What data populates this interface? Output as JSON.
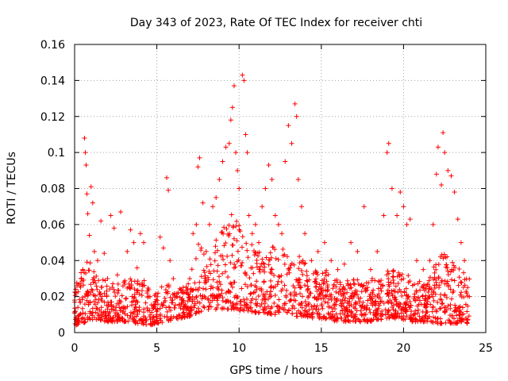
{
  "chart_data": {
    "type": "scatter",
    "title": "Day 343 of 2023, Rate Of TEC Index for receiver chti",
    "xlabel": "GPS time / hours",
    "ylabel": "ROTI / TECUs",
    "xlim": [
      0,
      25
    ],
    "ylim": [
      0,
      0.16
    ],
    "x_ticks": [
      0,
      5,
      10,
      15,
      20,
      25
    ],
    "x_tick_labels": [
      "0",
      "5",
      "10",
      "15",
      "20",
      "25"
    ],
    "y_ticks": [
      0,
      0.02,
      0.04,
      0.06,
      0.08,
      0.1,
      0.12,
      0.14,
      0.16
    ],
    "y_tick_labels": [
      "0",
      "0.02",
      "0.04",
      "0.06",
      "0.08",
      "0.1",
      "0.12",
      "0.14",
      "0.16"
    ],
    "grid": true,
    "marker": "+",
    "marker_color": "#ff0000",
    "data_x_range": [
      0,
      24
    ],
    "points": [
      [
        0.0,
        0.018
      ],
      [
        0.1,
        0.022
      ],
      [
        0.2,
        0.014
      ],
      [
        0.3,
        0.01
      ],
      [
        0.4,
        0.03
      ],
      [
        0.5,
        0.035
      ],
      [
        0.6,
        0.108
      ],
      [
        0.65,
        0.1
      ],
      [
        0.7,
        0.093
      ],
      [
        0.75,
        0.077
      ],
      [
        0.8,
        0.066
      ],
      [
        0.9,
        0.054
      ],
      [
        1.0,
        0.081
      ],
      [
        1.1,
        0.072
      ],
      [
        1.2,
        0.045
      ],
      [
        1.4,
        0.04
      ],
      [
        1.6,
        0.062
      ],
      [
        1.8,
        0.044
      ],
      [
        2.0,
        0.03
      ],
      [
        2.2,
        0.065
      ],
      [
        2.4,
        0.058
      ],
      [
        2.6,
        0.032
      ],
      [
        2.8,
        0.067
      ],
      [
        3.0,
        0.028
      ],
      [
        3.2,
        0.045
      ],
      [
        3.4,
        0.057
      ],
      [
        3.6,
        0.05
      ],
      [
        3.8,
        0.036
      ],
      [
        4.0,
        0.055
      ],
      [
        4.2,
        0.05
      ],
      [
        4.5,
        0.02
      ],
      [
        4.8,
        0.015
      ],
      [
        5.0,
        0.01
      ],
      [
        5.2,
        0.053
      ],
      [
        5.4,
        0.047
      ],
      [
        5.6,
        0.086
      ],
      [
        5.7,
        0.079
      ],
      [
        5.8,
        0.04
      ],
      [
        6.0,
        0.03
      ],
      [
        6.2,
        0.02
      ],
      [
        6.5,
        0.016
      ],
      [
        6.8,
        0.022
      ],
      [
        7.0,
        0.03
      ],
      [
        7.2,
        0.055
      ],
      [
        7.4,
        0.06
      ],
      [
        7.5,
        0.092
      ],
      [
        7.6,
        0.097
      ],
      [
        7.8,
        0.072
      ],
      [
        8.0,
        0.045
      ],
      [
        8.2,
        0.06
      ],
      [
        8.4,
        0.07
      ],
      [
        8.6,
        0.075
      ],
      [
        8.8,
        0.085
      ],
      [
        9.0,
        0.095
      ],
      [
        9.2,
        0.103
      ],
      [
        9.4,
        0.105
      ],
      [
        9.5,
        0.118
      ],
      [
        9.6,
        0.125
      ],
      [
        9.7,
        0.137
      ],
      [
        9.8,
        0.1
      ],
      [
        9.9,
        0.09
      ],
      [
        10.0,
        0.08
      ],
      [
        10.2,
        0.143
      ],
      [
        10.3,
        0.14
      ],
      [
        10.4,
        0.11
      ],
      [
        10.5,
        0.1
      ],
      [
        10.6,
        0.065
      ],
      [
        10.8,
        0.055
      ],
      [
        11.0,
        0.06
      ],
      [
        11.2,
        0.05
      ],
      [
        11.4,
        0.07
      ],
      [
        11.6,
        0.08
      ],
      [
        11.8,
        0.093
      ],
      [
        12.0,
        0.085
      ],
      [
        12.2,
        0.065
      ],
      [
        12.4,
        0.06
      ],
      [
        12.6,
        0.055
      ],
      [
        12.8,
        0.095
      ],
      [
        13.0,
        0.115
      ],
      [
        13.2,
        0.105
      ],
      [
        13.4,
        0.127
      ],
      [
        13.5,
        0.12
      ],
      [
        13.6,
        0.085
      ],
      [
        13.8,
        0.07
      ],
      [
        14.0,
        0.055
      ],
      [
        14.4,
        0.04
      ],
      [
        14.8,
        0.045
      ],
      [
        15.2,
        0.05
      ],
      [
        15.6,
        0.04
      ],
      [
        16.0,
        0.035
      ],
      [
        16.4,
        0.038
      ],
      [
        16.8,
        0.05
      ],
      [
        17.2,
        0.045
      ],
      [
        17.6,
        0.07
      ],
      [
        18.0,
        0.035
      ],
      [
        18.4,
        0.045
      ],
      [
        18.8,
        0.065
      ],
      [
        19.0,
        0.1
      ],
      [
        19.1,
        0.105
      ],
      [
        19.3,
        0.08
      ],
      [
        19.6,
        0.065
      ],
      [
        19.8,
        0.078
      ],
      [
        20.0,
        0.07
      ],
      [
        20.2,
        0.06
      ],
      [
        20.4,
        0.063
      ],
      [
        20.8,
        0.04
      ],
      [
        21.2,
        0.035
      ],
      [
        21.6,
        0.04
      ],
      [
        21.8,
        0.06
      ],
      [
        22.0,
        0.088
      ],
      [
        22.1,
        0.103
      ],
      [
        22.3,
        0.082
      ],
      [
        22.4,
        0.111
      ],
      [
        22.5,
        0.1
      ],
      [
        22.7,
        0.09
      ],
      [
        22.9,
        0.087
      ],
      [
        23.1,
        0.078
      ],
      [
        23.3,
        0.063
      ],
      [
        23.5,
        0.05
      ],
      [
        23.7,
        0.04
      ],
      [
        23.9,
        0.025
      ],
      [
        24.0,
        0.02
      ]
    ],
    "envelope": {
      "x": [
        0,
        0.5,
        1,
        1.5,
        2,
        2.5,
        3,
        3.5,
        4,
        4.5,
        5,
        5.5,
        6,
        6.5,
        7,
        7.5,
        8,
        8.5,
        9,
        9.5,
        10,
        10.5,
        11,
        11.5,
        12,
        12.5,
        13,
        13.5,
        14,
        14.5,
        15,
        15.5,
        16,
        16.5,
        17,
        17.5,
        18,
        18.5,
        19,
        19.5,
        20,
        20.5,
        21,
        21.5,
        22,
        22.5,
        23,
        23.5,
        24
      ],
      "low": [
        0.004,
        0.005,
        0.007,
        0.007,
        0.006,
        0.006,
        0.006,
        0.005,
        0.005,
        0.004,
        0.005,
        0.006,
        0.007,
        0.008,
        0.009,
        0.011,
        0.012,
        0.012,
        0.013,
        0.013,
        0.012,
        0.012,
        0.011,
        0.011,
        0.01,
        0.01,
        0.01,
        0.009,
        0.009,
        0.008,
        0.008,
        0.007,
        0.006,
        0.006,
        0.006,
        0.006,
        0.006,
        0.007,
        0.008,
        0.008,
        0.007,
        0.006,
        0.006,
        0.006,
        0.005,
        0.005,
        0.005,
        0.005,
        0.005
      ],
      "high": [
        0.025,
        0.04,
        0.045,
        0.032,
        0.028,
        0.03,
        0.03,
        0.03,
        0.035,
        0.025,
        0.022,
        0.03,
        0.025,
        0.025,
        0.03,
        0.05,
        0.045,
        0.05,
        0.065,
        0.07,
        0.06,
        0.055,
        0.045,
        0.045,
        0.05,
        0.048,
        0.045,
        0.045,
        0.04,
        0.035,
        0.035,
        0.035,
        0.032,
        0.03,
        0.03,
        0.03,
        0.03,
        0.03,
        0.035,
        0.035,
        0.035,
        0.03,
        0.03,
        0.03,
        0.04,
        0.045,
        0.04,
        0.035,
        0.03
      ]
    }
  }
}
